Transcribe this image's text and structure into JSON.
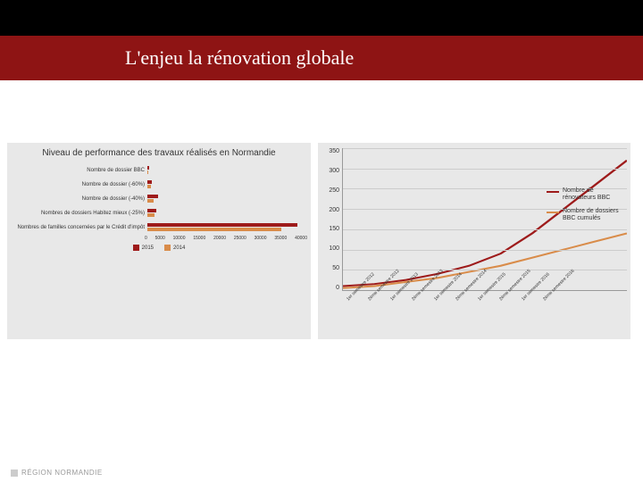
{
  "title": "L'enjeu la rénovation globale",
  "footer": "RÉGION NORMANDIE",
  "colors": {
    "header_bg": "#8e1414",
    "panel_bg": "#e8e8e8",
    "series_2015": "#9e1b1b",
    "series_2014": "#d98c4a",
    "line_renov": "#9e1b1b",
    "line_dossiers": "#d98c4a"
  },
  "left_chart": {
    "type": "bar-horizontal",
    "title": "Niveau de performance des travaux réalisés en Normandie",
    "xmax": 40000,
    "xticks": [
      "0",
      "5000",
      "10000",
      "15000",
      "20000",
      "25000",
      "30000",
      "35000",
      "40000"
    ],
    "series_names": {
      "a": "2015",
      "b": "2014"
    },
    "rows": [
      {
        "label": "Nombre de dossier BBC",
        "a": 400,
        "b": 300
      },
      {
        "label": "Nombre de dossier (-60%)",
        "a": 1200,
        "b": 900
      },
      {
        "label": "Nombre de dossier (-40%)",
        "a": 2800,
        "b": 1500
      },
      {
        "label": "Nombres de dossiers Habitez mieux (-25%)",
        "a": 2200,
        "b": 1800
      },
      {
        "label": "Nombres de familles concernées par le Crédit d'impôt",
        "a": 38000,
        "b": 34000
      }
    ]
  },
  "right_chart": {
    "type": "line",
    "ymax": 350,
    "yticks": [
      "350",
      "300",
      "250",
      "200",
      "150",
      "100",
      "50",
      "0"
    ],
    "categories": [
      "1er semestre 2012",
      "2ème semestre 2012",
      "1er semestre 2013",
      "2ème semestre 2013",
      "1er semestre 2014",
      "2ème semestre 2014",
      "1er semestre 2015",
      "2ème semestre 2015",
      "1er semestre 2016",
      "2ème semestre 2016"
    ],
    "series": [
      {
        "name": "Nombre de rénovateurs BBC",
        "color": "#9e1b1b",
        "values": [
          10,
          15,
          25,
          40,
          60,
          90,
          140,
          200,
          260,
          320
        ]
      },
      {
        "name": "Nombre de dossiers BBC cumulés",
        "color": "#d98c4a",
        "values": [
          5,
          10,
          20,
          30,
          45,
          60,
          80,
          100,
          120,
          140
        ]
      }
    ]
  }
}
